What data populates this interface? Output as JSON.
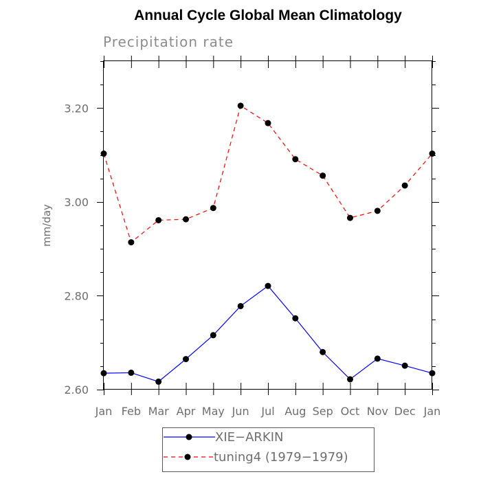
{
  "chart_data": {
    "type": "line",
    "title": "Annual Cycle Global Mean Climatology",
    "subtitle": "Precipitation rate",
    "ylabel": "mm/day",
    "xlabel": "",
    "categories": [
      "Jan",
      "Feb",
      "Mar",
      "Apr",
      "May",
      "Jun",
      "Jul",
      "Aug",
      "Sep",
      "Oct",
      "Nov",
      "Dec",
      "Jan"
    ],
    "ylim": [
      2.6,
      3.3
    ],
    "yticks": [
      2.6,
      2.8,
      3.0,
      3.2
    ],
    "ytick_labels": [
      "2.60",
      "2.80",
      "3.00",
      "3.20"
    ],
    "grid": false,
    "legend_position": "bottom-center",
    "series": [
      {
        "name": "XIE−ARKIN",
        "color": "#0000ff",
        "dash": "solid",
        "marker": "circle",
        "values": [
          2.635,
          2.636,
          2.617,
          2.665,
          2.716,
          2.778,
          2.821,
          2.752,
          2.68,
          2.622,
          2.666,
          2.651,
          2.635
        ]
      },
      {
        "name": "tuning4 (1979−1979)",
        "color": "#ff0000",
        "dash": "dashed",
        "marker": "circle",
        "values": [
          3.103,
          2.914,
          2.961,
          2.963,
          2.987,
          3.205,
          3.168,
          3.091,
          3.056,
          2.966,
          2.981,
          3.035,
          3.103
        ]
      }
    ]
  }
}
